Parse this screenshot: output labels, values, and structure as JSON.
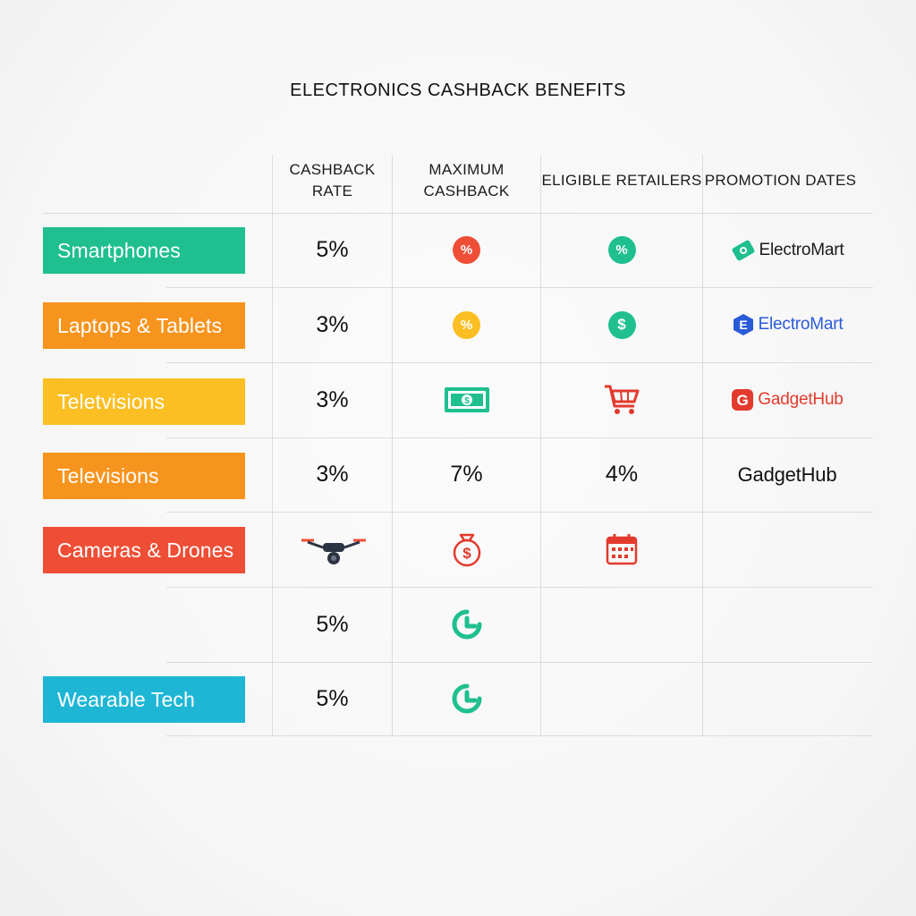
{
  "title": "ELECTRONICS CASHBACK BENEFITS",
  "columns": [
    "CASHBACK RATE",
    "MAXIMUM CASHBACK",
    "ELIGIBLE RETAILERS",
    "PROMOTION DATES"
  ],
  "colors": {
    "green": "#1fbf8f",
    "orange": "#f7941d",
    "yellow": "#fbbf24",
    "red_orange": "#ef4e36",
    "cyan": "#1fb6d6",
    "blue": "#2a5bd7",
    "red": "#e23b2e"
  },
  "rows": [
    {
      "category": "Smartphones",
      "rate": "5%",
      "max_icon": "percent-icon",
      "eligible_icon": "percent-icon",
      "retailer": "ElectroMart",
      "retailer_icon": "tag-icon"
    },
    {
      "category": "Laptops & Tablets",
      "rate": "3%",
      "max_icon": "percent-icon",
      "eligible_icon": "dollar-icon",
      "retailer": "ElectroMart",
      "retailer_icon": "e-logo-icon"
    },
    {
      "category": "Teletvisions",
      "rate": "3%",
      "max_icon": "banknote-icon",
      "eligible_icon": "cart-icon",
      "retailer": "GadgetHub",
      "retailer_icon": "g-logo-icon"
    },
    {
      "category": "Televisions",
      "rate": "3%",
      "max": "7%",
      "eligible": "4%",
      "retailer": "GadgetHub"
    },
    {
      "category": "Cameras & Drones",
      "rate_icon": "drone-icon",
      "max_icon": "money-bag-icon",
      "eligible_icon": "calendar-icon"
    },
    {
      "category": "",
      "rate": "5%",
      "max_icon": "clock-arc-icon"
    },
    {
      "category": "Wearable Tech",
      "rate": "5%",
      "max_icon": "clock-arc-icon"
    }
  ]
}
